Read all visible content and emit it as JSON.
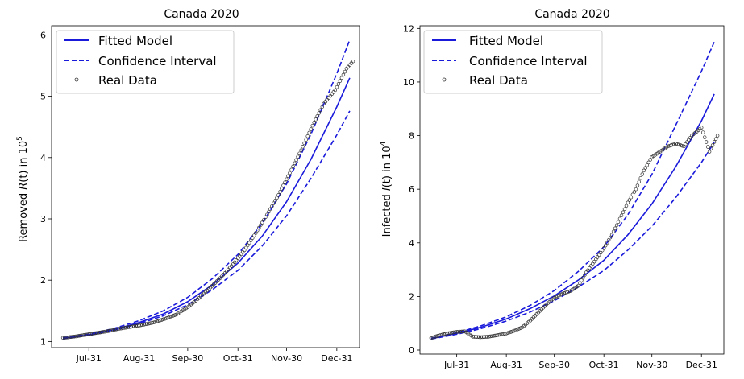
{
  "chart_data": [
    {
      "type": "line",
      "title": "Canada 2020",
      "ylabel": "Removed R(t) in 10^5",
      "ylabel_parts": {
        "pre": "Removed ",
        "sym": "R",
        "mid": "(t) in 10",
        "exp": "5"
      },
      "xlabel": "",
      "x_ticks": [
        "Jul-31",
        "Aug-31",
        "Sep-30",
        "Oct-31",
        "Nov-30",
        "Dec-31"
      ],
      "y_ticks": [
        "1",
        "2",
        "3",
        "4",
        "5",
        "6"
      ],
      "xlim": [
        "2020-07-08",
        "2021-01-14"
      ],
      "ylim": [
        0.9,
        6.15
      ],
      "grid": false,
      "legend_position": "top-left",
      "legend": [
        "Fitted Model",
        "Confidence Interval",
        "Real Data"
      ],
      "series": [
        {
          "name": "Fitted Model",
          "style": "solid",
          "color": "#1a1adb",
          "x": [
            "2020-07-15",
            "2020-07-31",
            "2020-08-15",
            "2020-08-31",
            "2020-09-15",
            "2020-09-30",
            "2020-10-15",
            "2020-10-31",
            "2020-11-15",
            "2020-11-30",
            "2020-12-15",
            "2020-12-31",
            "2021-01-08"
          ],
          "y": [
            1.05,
            1.11,
            1.19,
            1.31,
            1.45,
            1.65,
            1.92,
            2.28,
            2.72,
            3.28,
            3.97,
            4.83,
            5.3
          ]
        },
        {
          "name": "Confidence Interval",
          "style": "dashed",
          "color": "#1a1adb",
          "x": [
            "2020-07-15",
            "2020-07-31",
            "2020-08-15",
            "2020-08-31",
            "2020-09-15",
            "2020-09-30",
            "2020-10-15",
            "2020-10-31",
            "2020-11-15",
            "2020-11-30",
            "2020-12-15",
            "2020-12-31",
            "2021-01-08"
          ],
          "y": [
            1.06,
            1.12,
            1.21,
            1.34,
            1.5,
            1.72,
            2.02,
            2.42,
            2.93,
            3.57,
            4.38,
            5.37,
            5.92
          ]
        },
        {
          "name": "",
          "style": "dashed",
          "color": "#1a1adb",
          "x": [
            "2020-07-15",
            "2020-07-31",
            "2020-08-15",
            "2020-08-31",
            "2020-09-15",
            "2020-09-30",
            "2020-10-15",
            "2020-10-31",
            "2020-11-15",
            "2020-11-30",
            "2020-12-15",
            "2020-12-31",
            "2021-01-08"
          ],
          "y": [
            1.04,
            1.1,
            1.18,
            1.29,
            1.42,
            1.6,
            1.84,
            2.16,
            2.56,
            3.05,
            3.66,
            4.37,
            4.76
          ]
        },
        {
          "name": "Real Data",
          "style": "markers",
          "color": "#333333",
          "x": [
            "2020-07-15",
            "2020-07-22",
            "2020-07-29",
            "2020-08-05",
            "2020-08-12",
            "2020-08-19",
            "2020-08-26",
            "2020-09-02",
            "2020-09-09",
            "2020-09-16",
            "2020-09-23",
            "2020-09-30",
            "2020-10-07",
            "2020-10-14",
            "2020-10-21",
            "2020-10-28",
            "2020-11-04",
            "2020-11-11",
            "2020-11-18",
            "2020-11-25",
            "2020-12-02",
            "2020-12-09",
            "2020-12-16",
            "2020-12-23",
            "2020-12-30",
            "2021-01-06",
            "2021-01-10"
          ],
          "y": [
            1.06,
            1.08,
            1.11,
            1.14,
            1.17,
            1.21,
            1.24,
            1.27,
            1.31,
            1.37,
            1.44,
            1.56,
            1.71,
            1.88,
            2.06,
            2.26,
            2.49,
            2.77,
            3.07,
            3.39,
            3.75,
            4.12,
            4.52,
            4.88,
            5.1,
            5.45,
            5.57
          ]
        }
      ]
    },
    {
      "type": "line",
      "title": "Canada 2020",
      "ylabel": "Infected I(t) in 10^4",
      "ylabel_parts": {
        "pre": "Infected ",
        "sym": "I",
        "mid": "(t) in 10",
        "exp": "4"
      },
      "xlabel": "",
      "x_ticks": [
        "Jul-31",
        "Aug-31",
        "Sep-30",
        "Oct-31",
        "Nov-30",
        "Dec-31"
      ],
      "y_ticks": [
        "0",
        "2",
        "4",
        "6",
        "8",
        "10",
        "12"
      ],
      "xlim": [
        "2020-07-08",
        "2021-01-14"
      ],
      "ylim": [
        -0.15,
        12.1
      ],
      "grid": false,
      "legend_position": "top-left",
      "legend": [
        "Fitted Model",
        "Confidence Interval",
        "Real Data"
      ],
      "series": [
        {
          "name": "Fitted Model",
          "style": "solid",
          "color": "#1a1adb",
          "x": [
            "2020-07-15",
            "2020-07-31",
            "2020-08-15",
            "2020-08-31",
            "2020-09-15",
            "2020-09-30",
            "2020-10-15",
            "2020-10-31",
            "2020-11-15",
            "2020-11-30",
            "2020-12-15",
            "2020-12-31",
            "2021-01-08"
          ],
          "y": [
            0.42,
            0.62,
            0.85,
            1.16,
            1.55,
            2.02,
            2.61,
            3.35,
            4.3,
            5.45,
            6.85,
            8.55,
            9.55
          ]
        },
        {
          "name": "Confidence Interval",
          "style": "dashed",
          "color": "#1a1adb",
          "x": [
            "2020-07-15",
            "2020-07-31",
            "2020-08-15",
            "2020-08-31",
            "2020-09-15",
            "2020-09-30",
            "2020-10-15",
            "2020-10-31",
            "2020-11-15",
            "2020-11-30",
            "2020-12-15",
            "2020-12-31",
            "2021-01-08"
          ],
          "y": [
            0.44,
            0.65,
            0.9,
            1.24,
            1.67,
            2.22,
            2.93,
            3.85,
            5.05,
            6.55,
            8.4,
            10.4,
            11.5
          ]
        },
        {
          "name": "",
          "style": "dashed",
          "color": "#1a1adb",
          "x": [
            "2020-07-15",
            "2020-07-31",
            "2020-08-15",
            "2020-08-31",
            "2020-09-15",
            "2020-09-30",
            "2020-10-15",
            "2020-10-31",
            "2020-11-15",
            "2020-11-30",
            "2020-12-15",
            "2020-12-31",
            "2021-01-08"
          ],
          "y": [
            0.41,
            0.59,
            0.8,
            1.08,
            1.42,
            1.84,
            2.35,
            2.97,
            3.73,
            4.62,
            5.7,
            7.0,
            7.75
          ]
        },
        {
          "name": "Real Data",
          "style": "markers",
          "color": "#333333",
          "x": [
            "2020-07-15",
            "2020-07-20",
            "2020-07-25",
            "2020-07-31",
            "2020-08-05",
            "2020-08-10",
            "2020-08-15",
            "2020-08-20",
            "2020-08-25",
            "2020-08-31",
            "2020-09-05",
            "2020-09-10",
            "2020-09-15",
            "2020-09-20",
            "2020-09-25",
            "2020-09-30",
            "2020-10-05",
            "2020-10-10",
            "2020-10-15",
            "2020-10-20",
            "2020-10-25",
            "2020-10-31",
            "2020-11-05",
            "2020-11-10",
            "2020-11-15",
            "2020-11-20",
            "2020-11-25",
            "2020-11-30",
            "2020-12-05",
            "2020-12-10",
            "2020-12-15",
            "2020-12-20",
            "2020-12-25",
            "2020-12-31",
            "2021-01-05",
            "2021-01-10"
          ],
          "y": [
            0.45,
            0.55,
            0.62,
            0.68,
            0.7,
            0.5,
            0.48,
            0.5,
            0.55,
            0.62,
            0.72,
            0.85,
            1.1,
            1.4,
            1.7,
            1.95,
            2.1,
            2.2,
            2.4,
            2.9,
            3.3,
            3.8,
            4.3,
            4.9,
            5.5,
            6.0,
            6.7,
            7.2,
            7.4,
            7.6,
            7.7,
            7.6,
            8.0,
            8.3,
            7.4,
            8.0
          ]
        }
      ]
    }
  ]
}
